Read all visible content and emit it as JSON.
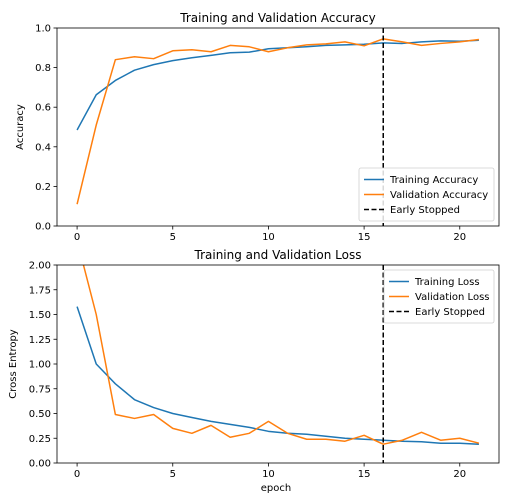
{
  "chart_data": [
    {
      "type": "line",
      "title": "Training and Validation Accuracy",
      "xlabel": "",
      "ylabel": "Accuracy",
      "xlim": [
        -1.05,
        22.05
      ],
      "ylim": [
        0.0,
        1.0
      ],
      "xticks": [
        0,
        5,
        10,
        15,
        20
      ],
      "xtick_labels": [
        "0",
        "5",
        "10",
        "15",
        "20"
      ],
      "yticks": [
        0.0,
        0.2,
        0.4,
        0.6,
        0.8,
        1.0
      ],
      "ytick_labels": [
        "0.0",
        "0.2",
        "0.4",
        "0.6",
        "0.8",
        "1.0"
      ],
      "grid": false,
      "legend_position": "lower-right",
      "x": [
        0,
        1,
        2,
        3,
        4,
        5,
        6,
        7,
        8,
        9,
        10,
        11,
        12,
        13,
        14,
        15,
        16,
        17,
        18,
        19,
        20,
        21
      ],
      "series": [
        {
          "name": "Training Accuracy",
          "color": "#1f77b4",
          "values": [
            0.485,
            0.663,
            0.735,
            0.787,
            0.815,
            0.835,
            0.85,
            0.862,
            0.875,
            0.878,
            0.895,
            0.9,
            0.905,
            0.912,
            0.915,
            0.918,
            0.925,
            0.922,
            0.93,
            0.935,
            0.933,
            0.938
          ]
        },
        {
          "name": "Validation Accuracy",
          "color": "#ff7f0e",
          "values": [
            0.11,
            0.51,
            0.84,
            0.855,
            0.845,
            0.885,
            0.89,
            0.88,
            0.912,
            0.905,
            0.88,
            0.9,
            0.915,
            0.92,
            0.93,
            0.91,
            0.945,
            0.93,
            0.912,
            0.922,
            0.93,
            0.942
          ]
        }
      ],
      "vline": {
        "name": "Early Stopped",
        "x": 16,
        "color": "#000000"
      }
    },
    {
      "type": "line",
      "title": "Training and Validation Loss",
      "xlabel": "epoch",
      "ylabel": "Cross Entropy",
      "xlim": [
        -1.05,
        22.05
      ],
      "ylim": [
        0.0,
        2.0
      ],
      "xticks": [
        0,
        5,
        10,
        15,
        20
      ],
      "xtick_labels": [
        "0",
        "5",
        "10",
        "15",
        "20"
      ],
      "yticks": [
        0.0,
        0.25,
        0.5,
        0.75,
        1.0,
        1.25,
        1.5,
        1.75,
        2.0
      ],
      "ytick_labels": [
        "0.00",
        "0.25",
        "0.50",
        "0.75",
        "1.00",
        "1.25",
        "1.50",
        "1.75",
        "2.00"
      ],
      "grid": false,
      "legend_position": "upper-right",
      "x": [
        0,
        1,
        2,
        3,
        4,
        5,
        6,
        7,
        8,
        9,
        10,
        11,
        12,
        13,
        14,
        15,
        16,
        17,
        18,
        19,
        20,
        21
      ],
      "series": [
        {
          "name": "Training Loss",
          "color": "#1f77b4",
          "values": [
            1.58,
            1.0,
            0.8,
            0.64,
            0.56,
            0.5,
            0.46,
            0.42,
            0.39,
            0.36,
            0.32,
            0.3,
            0.29,
            0.27,
            0.25,
            0.24,
            0.23,
            0.22,
            0.215,
            0.2,
            0.2,
            0.19
          ]
        },
        {
          "name": "Validation Loss",
          "color": "#ff7f0e",
          "values": [
            2.25,
            1.5,
            0.49,
            0.45,
            0.49,
            0.35,
            0.3,
            0.38,
            0.26,
            0.3,
            0.42,
            0.3,
            0.24,
            0.24,
            0.22,
            0.28,
            0.19,
            0.23,
            0.31,
            0.23,
            0.25,
            0.2
          ]
        }
      ],
      "vline": {
        "name": "Early Stopped",
        "x": 16,
        "color": "#000000"
      }
    }
  ]
}
